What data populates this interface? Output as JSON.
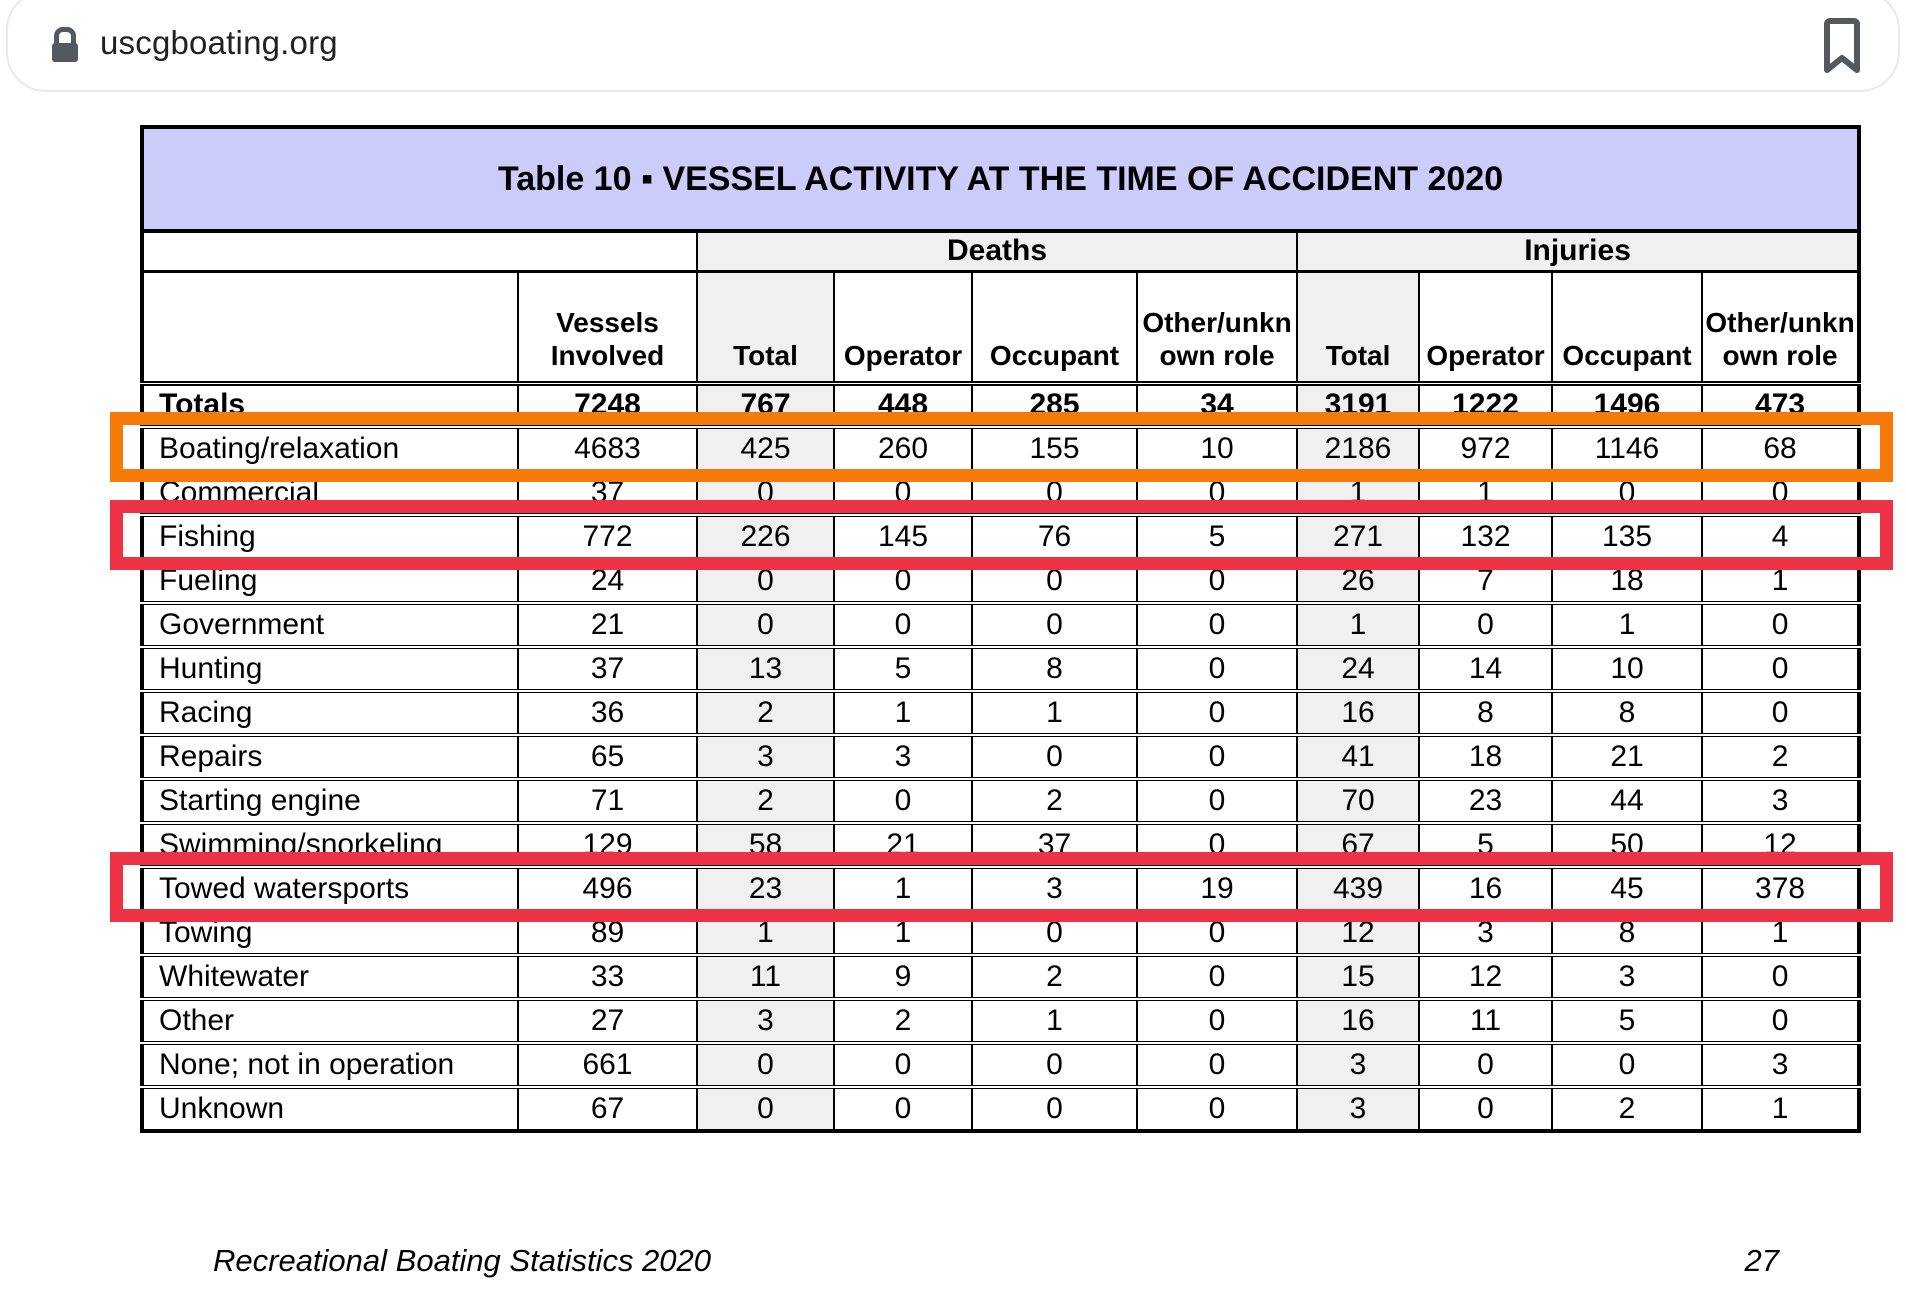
{
  "browser": {
    "url": "uscgboating.org"
  },
  "table": {
    "title": "Table 10 ▪ VESSEL ACTIVITY AT THE TIME OF ACCIDENT 2020",
    "group_headers": {
      "deaths": "Deaths",
      "injuries": "Injuries"
    },
    "columns": [
      "",
      "Vessels Involved",
      "Total",
      "Operator",
      "Occupant",
      "Other/unknown role",
      "Total",
      "Operator",
      "Occupant",
      "Other/unknown role"
    ],
    "rows": [
      {
        "label": "Totals",
        "bold": true,
        "values": [
          "7248",
          "767",
          "448",
          "285",
          "34",
          "3191",
          "1222",
          "1496",
          "473"
        ]
      },
      {
        "label": "Boating/relaxation",
        "bold": false,
        "values": [
          "4683",
          "425",
          "260",
          "155",
          "10",
          "2186",
          "972",
          "1146",
          "68"
        ]
      },
      {
        "label": "Commercial",
        "bold": false,
        "values": [
          "37",
          "0",
          "0",
          "0",
          "0",
          "1",
          "1",
          "0",
          "0"
        ]
      },
      {
        "label": "Fishing",
        "bold": false,
        "values": [
          "772",
          "226",
          "145",
          "76",
          "5",
          "271",
          "132",
          "135",
          "4"
        ]
      },
      {
        "label": "Fueling",
        "bold": false,
        "values": [
          "24",
          "0",
          "0",
          "0",
          "0",
          "26",
          "7",
          "18",
          "1"
        ]
      },
      {
        "label": "Government",
        "bold": false,
        "values": [
          "21",
          "0",
          "0",
          "0",
          "0",
          "1",
          "0",
          "1",
          "0"
        ]
      },
      {
        "label": "Hunting",
        "bold": false,
        "values": [
          "37",
          "13",
          "5",
          "8",
          "0",
          "24",
          "14",
          "10",
          "0"
        ]
      },
      {
        "label": "Racing",
        "bold": false,
        "values": [
          "36",
          "2",
          "1",
          "1",
          "0",
          "16",
          "8",
          "8",
          "0"
        ]
      },
      {
        "label": "Repairs",
        "bold": false,
        "values": [
          "65",
          "3",
          "3",
          "0",
          "0",
          "41",
          "18",
          "21",
          "2"
        ]
      },
      {
        "label": "Starting engine",
        "bold": false,
        "values": [
          "71",
          "2",
          "0",
          "2",
          "0",
          "70",
          "23",
          "44",
          "3"
        ]
      },
      {
        "label": "Swimming/snorkeling",
        "bold": false,
        "values": [
          "129",
          "58",
          "21",
          "37",
          "0",
          "67",
          "5",
          "50",
          "12"
        ]
      },
      {
        "label": "Towed watersports",
        "bold": false,
        "values": [
          "496",
          "23",
          "1",
          "3",
          "19",
          "439",
          "16",
          "45",
          "378"
        ]
      },
      {
        "label": "Towing",
        "bold": false,
        "values": [
          "89",
          "1",
          "1",
          "0",
          "0",
          "12",
          "3",
          "8",
          "1"
        ]
      },
      {
        "label": "Whitewater",
        "bold": false,
        "values": [
          "33",
          "11",
          "9",
          "2",
          "0",
          "15",
          "12",
          "3",
          "0"
        ]
      },
      {
        "label": "Other",
        "bold": false,
        "values": [
          "27",
          "3",
          "2",
          "1",
          "0",
          "16",
          "11",
          "5",
          "0"
        ]
      },
      {
        "label": "None; not in operation",
        "bold": false,
        "values": [
          "661",
          "0",
          "0",
          "0",
          "0",
          "3",
          "0",
          "0",
          "3"
        ]
      },
      {
        "label": "Unknown",
        "bold": false,
        "values": [
          "67",
          "0",
          "0",
          "0",
          "0",
          "3",
          "0",
          "2",
          "1"
        ]
      }
    ]
  },
  "highlights": [
    {
      "name": "orange",
      "row_label": "Boating/relaxation"
    },
    {
      "name": "red",
      "row_label": "Fishing"
    },
    {
      "name": "red2",
      "row_label": "Towed watersports"
    }
  ],
  "colors": {
    "title_bg": "#ccccfa",
    "shaded_column": "#f0f0f0",
    "orange": "#f57a0a",
    "red": "#ee3245",
    "red2": "#ee3245"
  },
  "footer": {
    "source": "Recreational Boating Statistics 2020",
    "page": "27"
  }
}
